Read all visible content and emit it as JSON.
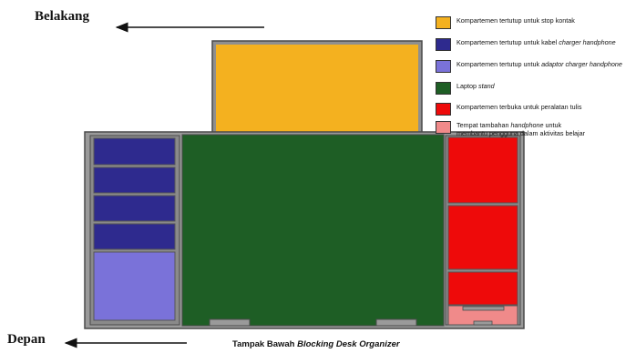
{
  "labels": {
    "back": "Belakang",
    "front": "Depan"
  },
  "caption": {
    "prefix": "Tampak Bawah ",
    "emphasis": "Blocking Desk Organizer"
  },
  "legend": [
    {
      "color": "#f4b11f",
      "parts": [
        {
          "t": "Kompartemen tertutup untuk stop kontak"
        }
      ]
    },
    {
      "color": "#2e2a8e",
      "parts": [
        {
          "t": "Kompartemen tertutup untuk kabel "
        },
        {
          "t": "charger handphone",
          "i": true
        }
      ]
    },
    {
      "color": "#7a72d9",
      "parts": [
        {
          "t": "Kompartemen tertutup untuk "
        },
        {
          "t": "adaptor charger handphone",
          "i": true
        }
      ]
    },
    {
      "color": "#1e5e25",
      "parts": [
        {
          "t": "Laptop "
        },
        {
          "t": "stand",
          "i": true
        }
      ]
    },
    {
      "color": "#ee0a0a",
      "parts": [
        {
          "t": "Kompartemen terbuka untuk peralatan tulis"
        }
      ]
    },
    {
      "color": "#f08a8a",
      "parts": [
        {
          "t": "Tempat tambahan "
        },
        {
          "t": "handphone",
          "i": true
        },
        {
          "t": " untuk membantu pengguna dalam aktivitas belajar"
        }
      ]
    }
  ],
  "colors": {
    "frame": "#5a5a5a",
    "frame_fill": "#9a9a9a",
    "socket": "#f4b11f",
    "cable": "#2e2a8e",
    "adaptor": "#7a72d9",
    "laptop_stand": "#1e5e25",
    "stationery": "#ee0a0a",
    "phone_holder": "#f08a8a"
  }
}
